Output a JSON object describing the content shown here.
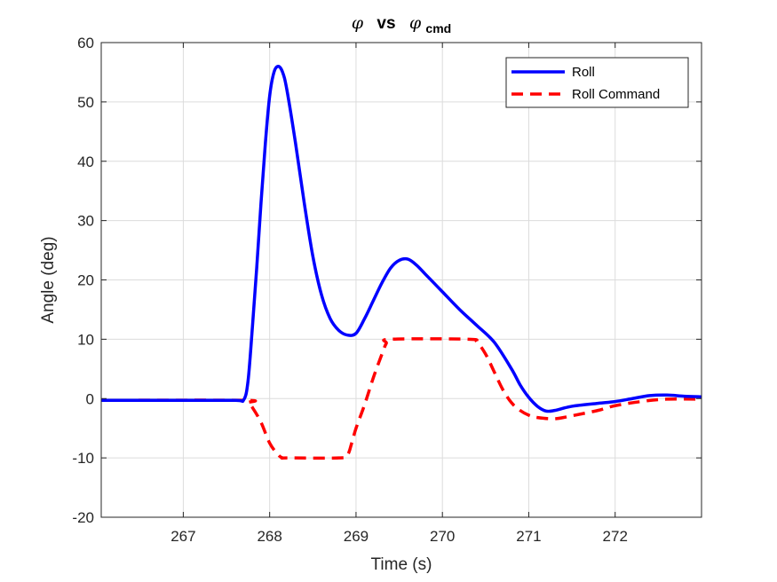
{
  "chart_data": {
    "type": "line",
    "title": {
      "symbol": "φ",
      "mid": "vs",
      "symbol2": "φ",
      "subscript": "cmd"
    },
    "xlabel": "Time (s)",
    "ylabel": "Angle (deg)",
    "xlim": [
      266.05,
      273.0
    ],
    "ylim": [
      -20,
      60
    ],
    "xticks": [
      267,
      268,
      269,
      270,
      271,
      272
    ],
    "yticks": [
      -20,
      -10,
      0,
      10,
      20,
      30,
      40,
      50,
      60
    ],
    "grid": true,
    "legend_location": "top-right",
    "series": [
      {
        "name": "Roll",
        "color": "#0000ff",
        "style": "solid",
        "x": [
          266.05,
          267.0,
          267.6,
          267.7,
          267.75,
          267.8,
          267.85,
          267.9,
          267.95,
          268.0,
          268.05,
          268.1,
          268.15,
          268.2,
          268.3,
          268.4,
          268.5,
          268.6,
          268.7,
          268.8,
          268.9,
          269.0,
          269.1,
          269.2,
          269.3,
          269.4,
          269.5,
          269.6,
          269.7,
          269.8,
          269.9,
          270.0,
          270.2,
          270.4,
          270.6,
          270.8,
          270.9,
          271.0,
          271.1,
          271.2,
          271.3,
          271.5,
          271.8,
          272.0,
          272.2,
          272.4,
          272.6,
          272.8,
          273.0
        ],
        "y": [
          -0.3,
          -0.3,
          -0.3,
          -0.2,
          3,
          12,
          22,
          33,
          43,
          51,
          55,
          56,
          55,
          52,
          43,
          33,
          24,
          17.5,
          13.5,
          11.5,
          10.7,
          11,
          13.5,
          16.5,
          19.5,
          22,
          23.3,
          23.5,
          22.5,
          21,
          19.5,
          18,
          15,
          12.3,
          9.5,
          5,
          2.3,
          0.2,
          -1.3,
          -2.1,
          -2.0,
          -1.3,
          -0.8,
          -0.5,
          0.0,
          0.5,
          0.6,
          0.4,
          0.3
        ]
      },
      {
        "name": "Roll Command",
        "color": "#ff0000",
        "style": "dashed",
        "x": [
          266.05,
          267.7,
          267.75,
          267.8,
          267.9,
          268.0,
          268.1,
          268.15,
          268.2,
          268.8,
          268.9,
          268.95,
          269.0,
          269.1,
          269.2,
          269.3,
          269.35,
          269.4,
          270.3,
          270.4,
          270.5,
          270.6,
          270.7,
          270.8,
          270.9,
          271.0,
          271.1,
          271.3,
          271.5,
          271.8,
          272.0,
          272.3,
          272.6,
          273.0
        ],
        "y": [
          -0.3,
          -0.3,
          -0.7,
          -1.5,
          -4,
          -7.5,
          -9.5,
          -10,
          -10,
          -10,
          -9.5,
          -7.5,
          -5,
          -1,
          3.5,
          7.5,
          9.3,
          10,
          10,
          9.5,
          7.5,
          4.5,
          1.5,
          -0.7,
          -2.0,
          -2.8,
          -3.2,
          -3.4,
          -2.9,
          -2.0,
          -1.2,
          -0.5,
          -0.1,
          -0.1
        ]
      }
    ]
  }
}
